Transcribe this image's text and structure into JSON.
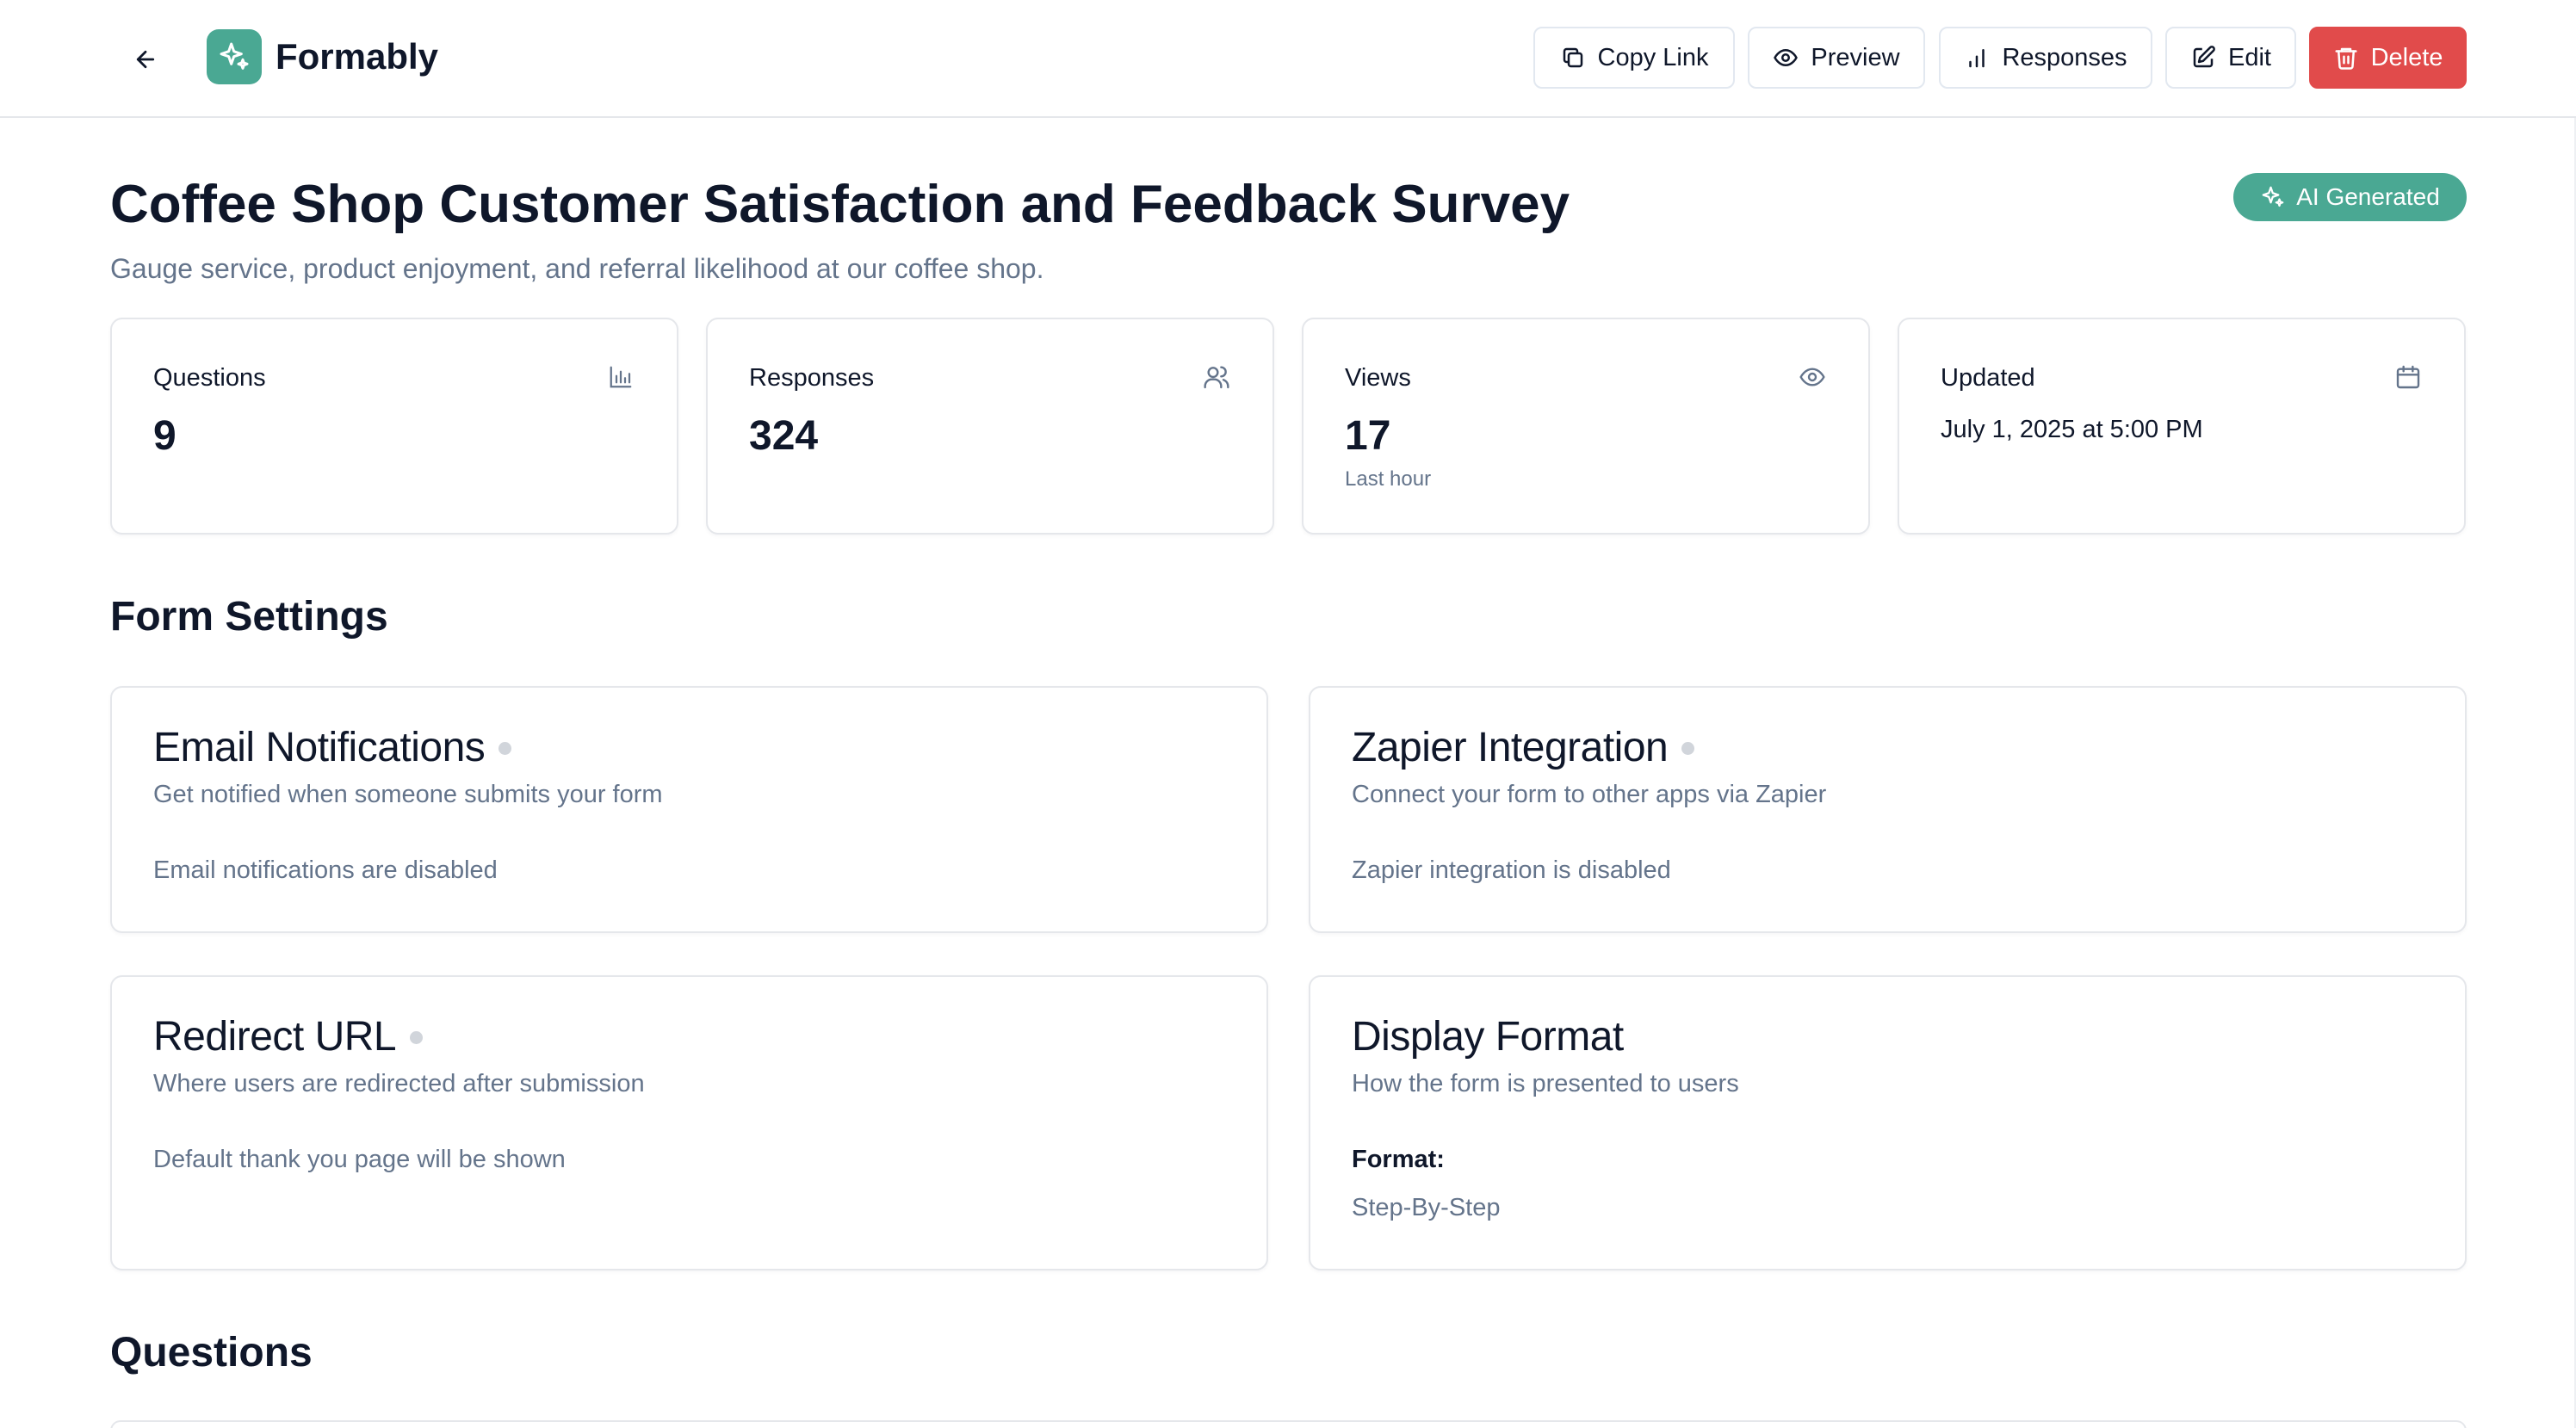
{
  "header": {
    "brand": "Formably",
    "buttons": {
      "copy_link": "Copy Link",
      "preview": "Preview",
      "responses": "Responses",
      "edit": "Edit",
      "delete": "Delete"
    }
  },
  "form": {
    "title": "Coffee Shop Customer Satisfaction and Feedback Survey",
    "description": "Gauge service, product enjoyment, and referral likelihood at our coffee shop.",
    "badge": "AI Generated"
  },
  "stats": {
    "questions": {
      "label": "Questions",
      "value": "9"
    },
    "responses": {
      "label": "Responses",
      "value": "324"
    },
    "views": {
      "label": "Views",
      "value": "17",
      "sub": "Last hour"
    },
    "updated": {
      "label": "Updated",
      "value": "July 1, 2025 at 5:00 PM"
    }
  },
  "settings": {
    "title": "Form Settings",
    "email": {
      "title": "Email Notifications",
      "description": "Get notified when someone submits your form",
      "status": "Email notifications are disabled"
    },
    "zapier": {
      "title": "Zapier Integration",
      "description": "Connect your form to other apps via Zapier",
      "status": "Zapier integration is disabled"
    },
    "redirect": {
      "title": "Redirect URL",
      "description": "Where users are redirected after submission",
      "status": "Default thank you page will be shown"
    },
    "display": {
      "title": "Display Format",
      "description": "How the form is presented to users",
      "format_label": "Format:",
      "format_value": "Step-By-Step"
    }
  },
  "questions_section": {
    "title": "Questions"
  },
  "colors": {
    "accent": "#4aa893",
    "danger": "#e14b4b",
    "muted_text": "#64748b",
    "border": "#e5e7eb"
  },
  "icons": {
    "back": "arrow-left-icon",
    "logo": "sparkles-icon",
    "copy": "copy-icon",
    "preview": "eye-icon",
    "responses": "bar-chart-icon",
    "edit": "pencil-square-icon",
    "delete": "trash-icon",
    "questions": "bar-chart-icon",
    "responses_stat": "users-icon",
    "views": "eye-icon",
    "updated": "calendar-icon"
  }
}
